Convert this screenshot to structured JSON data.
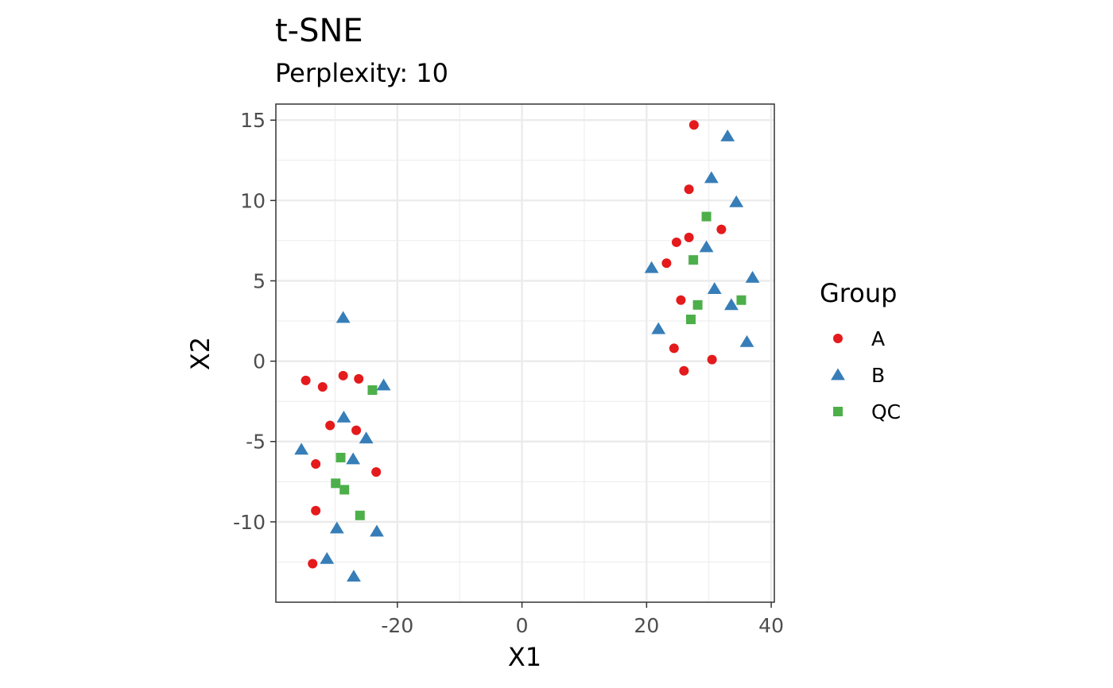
{
  "chart_data": {
    "type": "scatter",
    "title": "t-SNE",
    "subtitle": "Perplexity: 10",
    "xlabel": "X1",
    "ylabel": "X2",
    "xlim": [
      -39.5,
      40.5
    ],
    "ylim": [
      -15,
      16
    ],
    "x_ticks": [
      -20,
      0,
      20,
      40
    ],
    "x_tick_labels": [
      "-20",
      "0",
      "20",
      "40"
    ],
    "y_ticks": [
      15,
      10,
      5,
      0,
      -5,
      -10
    ],
    "y_tick_labels": [
      "15",
      "10",
      "5",
      "0",
      "-5",
      "-10"
    ],
    "grid": true,
    "legend": {
      "title": "Group",
      "position": "right",
      "entries": [
        {
          "label": "A",
          "shape": "circle",
          "color": "#e41a1c"
        },
        {
          "label": "B",
          "shape": "triangle",
          "color": "#377eb8"
        },
        {
          "label": "QC",
          "shape": "square",
          "color": "#4daf4a"
        }
      ]
    },
    "series": [
      {
        "name": "A",
        "shape": "circle",
        "color": "#e41a1c",
        "points": [
          [
            27.6,
            14.7
          ],
          [
            26.8,
            10.7
          ],
          [
            32.0,
            8.2
          ],
          [
            26.8,
            7.7
          ],
          [
            24.8,
            7.4
          ],
          [
            23.2,
            6.1
          ],
          [
            25.5,
            3.8
          ],
          [
            24.4,
            0.8
          ],
          [
            30.5,
            0.1
          ],
          [
            26.0,
            -0.6
          ],
          [
            -34.7,
            -1.2
          ],
          [
            -32.0,
            -1.6
          ],
          [
            -28.7,
            -0.9
          ],
          [
            -26.2,
            -1.1
          ],
          [
            -30.8,
            -4.0
          ],
          [
            -26.6,
            -4.3
          ],
          [
            -33.1,
            -6.4
          ],
          [
            -23.4,
            -6.9
          ],
          [
            -33.1,
            -9.3
          ],
          [
            -33.6,
            -12.6
          ]
        ]
      },
      {
        "name": "B",
        "shape": "triangle",
        "color": "#377eb8",
        "points": [
          [
            33.0,
            14.0
          ],
          [
            30.4,
            11.4
          ],
          [
            34.4,
            9.9
          ],
          [
            29.6,
            7.1
          ],
          [
            20.8,
            5.8
          ],
          [
            37.0,
            5.2
          ],
          [
            30.9,
            4.5
          ],
          [
            33.6,
            3.5
          ],
          [
            21.9,
            2.0
          ],
          [
            36.1,
            1.2
          ],
          [
            -28.7,
            2.7
          ],
          [
            -22.2,
            -1.5
          ],
          [
            -28.6,
            -3.5
          ],
          [
            -25.0,
            -4.8
          ],
          [
            -35.4,
            -5.5
          ],
          [
            -27.1,
            -6.1
          ],
          [
            -29.7,
            -10.4
          ],
          [
            -23.3,
            -10.6
          ],
          [
            -31.3,
            -12.3
          ],
          [
            -27.0,
            -13.4
          ]
        ]
      },
      {
        "name": "QC",
        "shape": "square",
        "color": "#4daf4a",
        "points": [
          [
            29.6,
            9.0
          ],
          [
            27.5,
            6.3
          ],
          [
            28.2,
            3.5
          ],
          [
            27.1,
            2.6
          ],
          [
            35.2,
            3.8
          ],
          [
            -24.0,
            -1.8
          ],
          [
            -29.1,
            -6.0
          ],
          [
            -29.9,
            -7.6
          ],
          [
            -28.5,
            -8.0
          ],
          [
            -26.0,
            -9.6
          ]
        ]
      }
    ]
  }
}
